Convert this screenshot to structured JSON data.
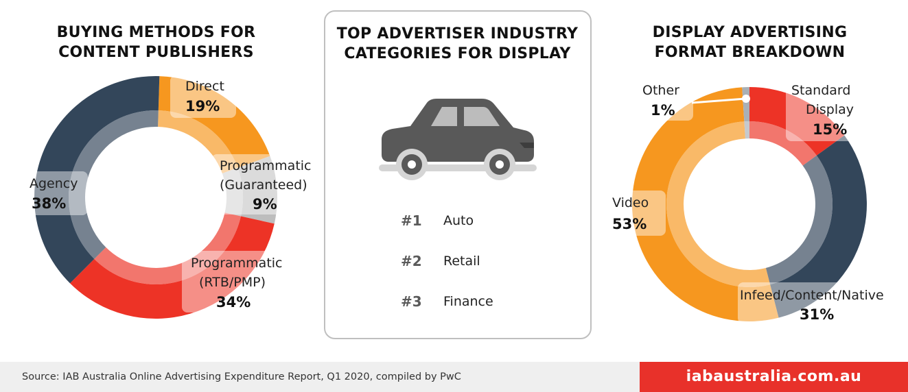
{
  "colors": {
    "navy": "#33465a",
    "red": "#ed3326",
    "orange": "#f6971f",
    "gray": "#bdbdbd",
    "light_gray": "#a9b0b6",
    "accent": "#e8312a"
  },
  "left_chart": {
    "title_line1": "BUYING METHODS FOR",
    "title_line2": "CONTENT PUBLISHERS",
    "labels": {
      "direct": {
        "name": "Direct",
        "pct": "19%"
      },
      "prog_guaranteed": {
        "name_line1": "Programmatic",
        "name_line2": "(Guaranteed)",
        "pct": "9%"
      },
      "prog_rtb": {
        "name_line1": "Programmatic",
        "name_line2": "(RTB/PMP)",
        "pct": "34%"
      },
      "agency": {
        "name": "Agency",
        "pct": "38%"
      }
    }
  },
  "middle_panel": {
    "title_line1": "TOP ADVERTISER INDUSTRY",
    "title_line2": "CATEGORIES FOR DISPLAY",
    "icon": "car-icon",
    "rankings": [
      {
        "rank": "#1",
        "name": "Auto"
      },
      {
        "rank": "#2",
        "name": "Retail"
      },
      {
        "rank": "#3",
        "name": "Finance"
      }
    ]
  },
  "right_chart": {
    "title_line1": "DISPLAY ADVERTISING",
    "title_line2": "FORMAT BREAKDOWN",
    "labels": {
      "other": {
        "name": "Other",
        "pct": "1%"
      },
      "standard": {
        "name_line1": "Standard",
        "name_line2": "Display",
        "pct": "15%"
      },
      "video": {
        "name": "Video",
        "pct": "53%"
      },
      "infeed": {
        "name": "Infeed/Content/Native",
        "pct": "31%"
      }
    }
  },
  "chart_data": [
    {
      "type": "pie",
      "title": "BUYING METHODS FOR CONTENT PUBLISHERS",
      "categories": [
        "Direct",
        "Programmatic (Guaranteed)",
        "Programmatic (RTB/PMP)",
        "Agency"
      ],
      "values": [
        19,
        9,
        34,
        38
      ],
      "colors": [
        "#f6971f",
        "#bdbdbd",
        "#ed3326",
        "#33465a"
      ],
      "start_angle": 0,
      "donut": true
    },
    {
      "type": "pie",
      "title": "DISPLAY ADVERTISING FORMAT BREAKDOWN",
      "categories": [
        "Standard Display",
        "Infeed/Content/Native",
        "Video",
        "Other"
      ],
      "values": [
        15,
        31,
        53,
        1
      ],
      "colors": [
        "#ed3326",
        "#33465a",
        "#f6971f",
        "#a9b0b6"
      ],
      "start_angle": 0,
      "donut": true
    }
  ],
  "footer": {
    "source": "Source: IAB Australia Online Advertising Expenditure Report, Q1 2020, compiled by PwC",
    "brand": "iabaustralia.com.au"
  }
}
